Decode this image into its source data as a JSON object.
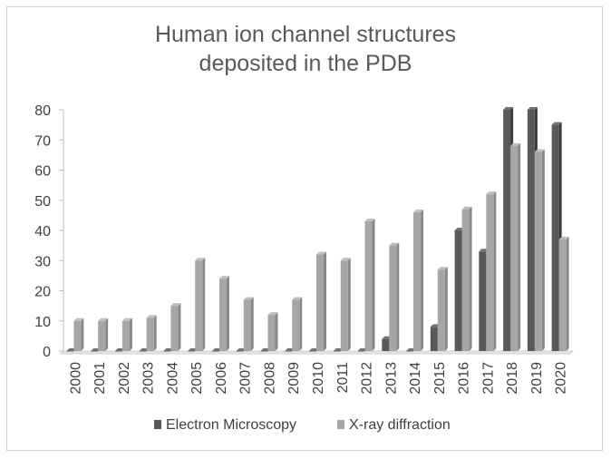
{
  "chart_data": {
    "type": "bar",
    "title_lines": [
      "Human ion channel structures",
      "deposited in the PDB"
    ],
    "categories": [
      "2000",
      "2001",
      "2002",
      "2003",
      "2004",
      "2005",
      "2006",
      "2007",
      "2008",
      "2009",
      "2010",
      "2011",
      "2012",
      "2013",
      "2014",
      "2015",
      "2016",
      "2017",
      "2018",
      "2019",
      "2020"
    ],
    "series": [
      {
        "name": "Electron Microscopy",
        "color": "#595959",
        "values": [
          0,
          0,
          0,
          0,
          0,
          0,
          0,
          0,
          0,
          0,
          0,
          0,
          0,
          4,
          0,
          8,
          40,
          33,
          80,
          80,
          75
        ]
      },
      {
        "name": "X-ray diffraction",
        "color": "#a6a6a6",
        "values": [
          10,
          10,
          10,
          11,
          15,
          30,
          24,
          17,
          12,
          17,
          32,
          30,
          43,
          35,
          46,
          27,
          47,
          52,
          68,
          66,
          37
        ]
      }
    ],
    "ylim": [
      0,
      80
    ],
    "yticks": [
      0,
      10,
      20,
      30,
      40,
      50,
      60,
      70,
      80
    ],
    "grid": false,
    "legend_position": "bottom"
  }
}
